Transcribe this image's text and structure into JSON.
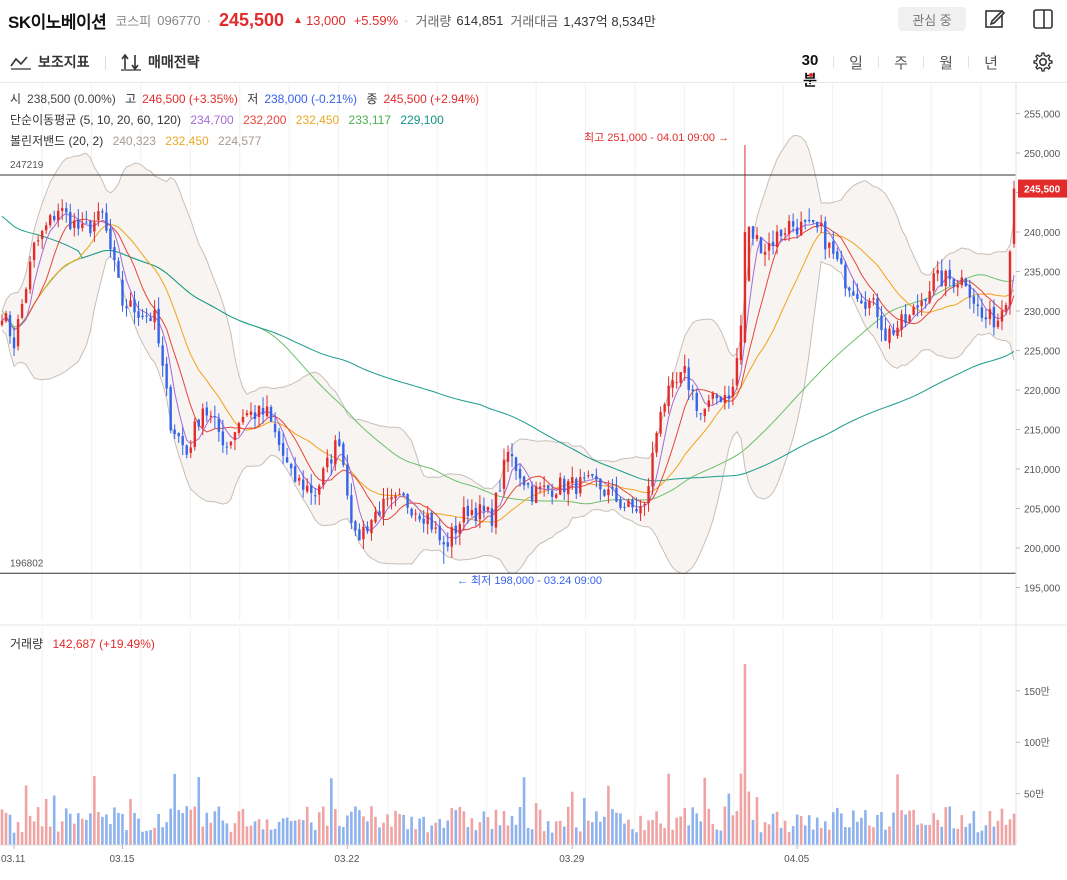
{
  "header": {
    "stock_name": "SK이노베이션",
    "market": "코스피",
    "code": "096770",
    "separator": "·",
    "price": "245,500",
    "change_arrow": "▲",
    "change": "13,000",
    "change_pct": "+5.59%",
    "volume_label": "거래량",
    "volume_value": "614,851",
    "amount_label": "거래대금",
    "amount_value": "1,437억 8,534만",
    "watch_label": "관심 중",
    "icons": [
      "edit-icon",
      "panel-icon"
    ]
  },
  "toolbar": {
    "indicator_label": "보조지표",
    "strategy_label": "매매전략",
    "periods": [
      "30분",
      "일",
      "주",
      "월",
      "년"
    ],
    "active_period": "30분",
    "icons": [
      "indicator-icon",
      "strategy-icon",
      "gear-icon"
    ]
  },
  "legend": {
    "ohlc": {
      "open_label": "시",
      "open_value": "238,500 (0.00%)",
      "high_label": "고",
      "high_value": "246,500 (+3.35%)",
      "low_label": "저",
      "low_value": "238,000 (-0.21%)",
      "close_label": "종",
      "close_value": "245,500 (+2.94%)"
    },
    "ma": {
      "label": "단순이동평균 (5, 10, 20, 60, 120)",
      "values": [
        "234,700",
        "232,200",
        "232,450",
        "233,117",
        "229,100"
      ]
    },
    "bollinger": {
      "label": "볼린저밴드 (20, 2)",
      "values": [
        "240,323",
        "232,450",
        "224,577"
      ]
    },
    "volume": {
      "label": "거래량",
      "value": "142,687 (+19.49%)"
    }
  },
  "colors": {
    "up": "#e22c2c",
    "down": "#3563e9",
    "ma5": "#a66bd8",
    "ma10": "#e8453c",
    "ma20": "#f2a31b",
    "ma60": "#6cc06c",
    "ma120": "#1a9a8c",
    "bb_band": "#c8bfb8",
    "bb_fill": "#f7f4f1",
    "ma20_legend": "#e8a823",
    "ma60_legend": "#4caf50",
    "ma120_legend": "#129488",
    "bb_legend": "#a89a8e",
    "low_marker": "#3563e9"
  },
  "chart_data": {
    "type": "candlestick",
    "y_axis": {
      "ticks": [
        "255,000",
        "250,000",
        "245,000",
        "240,000",
        "235,000",
        "230,000",
        "225,000",
        "220,000",
        "215,000",
        "210,000",
        "205,000",
        "200,000",
        "195,000"
      ],
      "range": [
        193000,
        257000
      ]
    },
    "x_axis": {
      "ticks": [
        "03.11",
        "03.15",
        "03.22",
        "03.29",
        "04.05"
      ]
    },
    "current_price_label": "245,500",
    "ref_lines": [
      {
        "label": "247219",
        "value": 247219
      },
      {
        "label": "196802",
        "value": 196802
      }
    ],
    "annotations": [
      {
        "text": "최고 251,000 - 04.01 09:00",
        "value": 251000,
        "arrow": "→"
      },
      {
        "text": "최저 198,000 - 03.24 09:00",
        "value": 198000,
        "arrow": "←"
      }
    ],
    "close_keypoints": [
      [
        0,
        230000
      ],
      [
        3,
        226000
      ],
      [
        8,
        238000
      ],
      [
        14,
        243000
      ],
      [
        20,
        240000
      ],
      [
        25,
        242000
      ],
      [
        30,
        231000
      ],
      [
        38,
        229000
      ],
      [
        42,
        216000
      ],
      [
        46,
        212000
      ],
      [
        50,
        218000
      ],
      [
        56,
        213000
      ],
      [
        60,
        217000
      ],
      [
        66,
        217000
      ],
      [
        72,
        209000
      ],
      [
        78,
        207000
      ],
      [
        84,
        214000
      ],
      [
        88,
        201000
      ],
      [
        94,
        205000
      ],
      [
        100,
        206000
      ],
      [
        106,
        204000
      ],
      [
        110,
        200000
      ],
      [
        116,
        205000
      ],
      [
        122,
        204000
      ],
      [
        126,
        212000
      ],
      [
        132,
        207000
      ],
      [
        140,
        208000
      ],
      [
        148,
        208000
      ],
      [
        156,
        205000
      ],
      [
        160,
        205000
      ],
      [
        164,
        218000
      ],
      [
        170,
        222000
      ],
      [
        174,
        217000
      ],
      [
        178,
        219000
      ],
      [
        182,
        220000
      ],
      [
        184,
        228000
      ],
      [
        186,
        240000
      ],
      [
        190,
        238000
      ],
      [
        196,
        241000
      ],
      [
        204,
        240000
      ],
      [
        210,
        234000
      ],
      [
        218,
        230000
      ],
      [
        220,
        227000
      ],
      [
        226,
        229000
      ],
      [
        232,
        234000
      ],
      [
        236,
        234000
      ],
      [
        240,
        234000
      ],
      [
        244,
        229000
      ],
      [
        248,
        229000
      ],
      [
        250,
        232000
      ],
      [
        252,
        245500
      ]
    ],
    "volume": {
      "label": "거래량",
      "ticks": [
        "150만",
        "100만",
        "50만"
      ],
      "range_max": 1800000,
      "spike_index": 185,
      "spike_value": 1760000
    }
  }
}
